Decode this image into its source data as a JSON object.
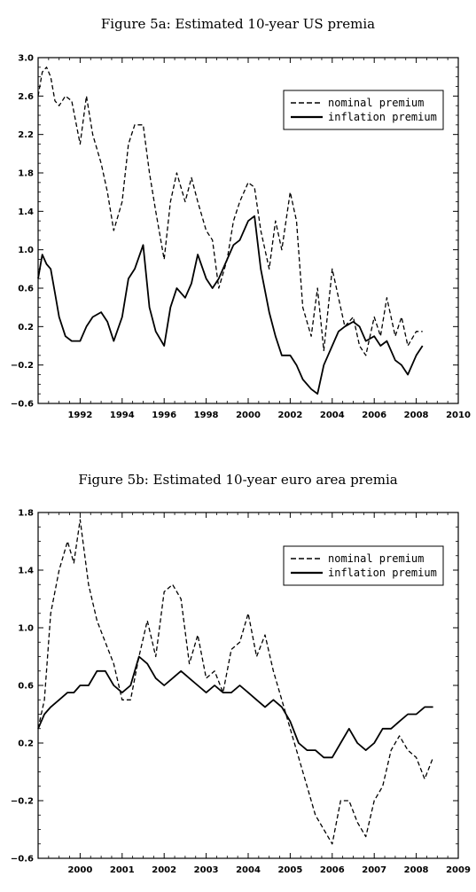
{
  "chart_data": [
    {
      "type": "line",
      "title": "Figure 5a: Estimated 10-year US premia",
      "xlim": [
        1990,
        2010
      ],
      "ylim": [
        -0.6,
        3.0
      ],
      "x_ticks": [
        1992,
        1994,
        1996,
        1998,
        2000,
        2002,
        2004,
        2006,
        2008,
        2010
      ],
      "y_ticks": [
        -0.6,
        -0.2,
        0.2,
        0.6,
        1.0,
        1.4,
        1.8,
        2.2,
        2.6,
        3.0
      ],
      "legend_position": "top-right",
      "grid": false,
      "series": [
        {
          "name": "nominal premium",
          "style": "dashed",
          "x": [
            1990.0,
            1990.2,
            1990.4,
            1990.6,
            1990.8,
            1991.0,
            1991.3,
            1991.6,
            1992.0,
            1992.3,
            1992.6,
            1993.0,
            1993.3,
            1993.6,
            1994.0,
            1994.3,
            1994.6,
            1995.0,
            1995.3,
            1995.6,
            1996.0,
            1996.3,
            1996.6,
            1997.0,
            1997.3,
            1997.6,
            1998.0,
            1998.3,
            1998.6,
            1999.0,
            1999.3,
            1999.6,
            2000.0,
            2000.3,
            2000.6,
            2001.0,
            2001.3,
            2001.6,
            2002.0,
            2002.3,
            2002.6,
            2003.0,
            2003.3,
            2003.6,
            2004.0,
            2004.3,
            2004.6,
            2005.0,
            2005.3,
            2005.6,
            2006.0,
            2006.3,
            2006.6,
            2007.0,
            2007.3,
            2007.6,
            2008.0,
            2008.3
          ],
          "y": [
            2.6,
            2.85,
            2.9,
            2.8,
            2.55,
            2.5,
            2.6,
            2.55,
            2.1,
            2.6,
            2.2,
            1.9,
            1.6,
            1.2,
            1.5,
            2.1,
            2.3,
            2.3,
            1.8,
            1.4,
            0.9,
            1.5,
            1.8,
            1.5,
            1.75,
            1.5,
            1.2,
            1.1,
            0.6,
            0.9,
            1.3,
            1.5,
            1.7,
            1.65,
            1.2,
            0.8,
            1.3,
            1.0,
            1.6,
            1.3,
            0.4,
            0.1,
            0.6,
            -0.05,
            0.8,
            0.5,
            0.2,
            0.3,
            0.0,
            -0.1,
            0.3,
            0.1,
            0.5,
            0.1,
            0.3,
            0.0,
            0.15,
            0.15
          ]
        },
        {
          "name": "inflation premium",
          "style": "solid",
          "x": [
            1990.0,
            1990.2,
            1990.4,
            1990.6,
            1990.8,
            1991.0,
            1991.3,
            1991.6,
            1992.0,
            1992.3,
            1992.6,
            1993.0,
            1993.3,
            1993.6,
            1994.0,
            1994.3,
            1994.6,
            1995.0,
            1995.3,
            1995.6,
            1996.0,
            1996.3,
            1996.6,
            1997.0,
            1997.3,
            1997.6,
            1998.0,
            1998.3,
            1998.6,
            1999.0,
            1999.3,
            1999.6,
            2000.0,
            2000.3,
            2000.6,
            2001.0,
            2001.3,
            2001.6,
            2002.0,
            2002.3,
            2002.6,
            2003.0,
            2003.3,
            2003.6,
            2004.0,
            2004.3,
            2004.6,
            2005.0,
            2005.3,
            2005.6,
            2006.0,
            2006.3,
            2006.6,
            2007.0,
            2007.3,
            2007.6,
            2008.0,
            2008.3
          ],
          "y": [
            0.7,
            0.95,
            0.85,
            0.8,
            0.55,
            0.3,
            0.1,
            0.05,
            0.05,
            0.2,
            0.3,
            0.35,
            0.25,
            0.05,
            0.3,
            0.7,
            0.8,
            1.05,
            0.4,
            0.15,
            0.0,
            0.4,
            0.6,
            0.5,
            0.65,
            0.95,
            0.7,
            0.6,
            0.7,
            0.9,
            1.05,
            1.1,
            1.3,
            1.35,
            0.8,
            0.35,
            0.1,
            -0.1,
            -0.1,
            -0.2,
            -0.35,
            -0.45,
            -0.5,
            -0.2,
            0.0,
            0.15,
            0.2,
            0.25,
            0.2,
            0.05,
            0.1,
            0.0,
            0.05,
            -0.15,
            -0.2,
            -0.3,
            -0.1,
            0.0
          ]
        }
      ]
    },
    {
      "type": "line",
      "title": "Figure 5b: Estimated 10-year euro area premia",
      "xlim": [
        1999,
        2009
      ],
      "ylim": [
        -0.6,
        1.8
      ],
      "x_ticks": [
        2000,
        2001,
        2002,
        2003,
        2004,
        2005,
        2006,
        2007,
        2008,
        2009
      ],
      "y_ticks": [
        -0.6,
        -0.2,
        0.2,
        0.6,
        1.0,
        1.4,
        1.8
      ],
      "legend_position": "top-right",
      "grid": false,
      "series": [
        {
          "name": "nominal premium",
          "style": "dashed",
          "x": [
            1999.0,
            1999.15,
            1999.3,
            1999.5,
            1999.7,
            1999.85,
            2000.0,
            2000.2,
            2000.4,
            2000.6,
            2000.8,
            2001.0,
            2001.2,
            2001.4,
            2001.6,
            2001.8,
            2002.0,
            2002.2,
            2002.4,
            2002.6,
            2002.8,
            2003.0,
            2003.2,
            2003.4,
            2003.6,
            2003.8,
            2004.0,
            2004.2,
            2004.4,
            2004.6,
            2004.8,
            2005.0,
            2005.2,
            2005.4,
            2005.6,
            2005.8,
            2006.0,
            2006.2,
            2006.4,
            2006.6,
            2006.8,
            2007.0,
            2007.2,
            2007.4,
            2007.6,
            2007.8,
            2008.0,
            2008.2,
            2008.4
          ],
          "y": [
            0.3,
            0.5,
            1.1,
            1.4,
            1.6,
            1.45,
            1.75,
            1.3,
            1.05,
            0.9,
            0.75,
            0.5,
            0.5,
            0.8,
            1.05,
            0.8,
            1.25,
            1.3,
            1.2,
            0.75,
            0.95,
            0.65,
            0.7,
            0.55,
            0.85,
            0.9,
            1.1,
            0.8,
            0.95,
            0.7,
            0.5,
            0.3,
            0.1,
            -0.1,
            -0.3,
            -0.4,
            -0.5,
            -0.2,
            -0.2,
            -0.35,
            -0.45,
            -0.2,
            -0.1,
            0.15,
            0.25,
            0.15,
            0.1,
            -0.05,
            0.1
          ]
        },
        {
          "name": "inflation premium",
          "style": "solid",
          "x": [
            1999.0,
            1999.15,
            1999.3,
            1999.5,
            1999.7,
            1999.85,
            2000.0,
            2000.2,
            2000.4,
            2000.6,
            2000.8,
            2001.0,
            2001.2,
            2001.4,
            2001.6,
            2001.8,
            2002.0,
            2002.2,
            2002.4,
            2002.6,
            2002.8,
            2003.0,
            2003.2,
            2003.4,
            2003.6,
            2003.8,
            2004.0,
            2004.2,
            2004.4,
            2004.6,
            2004.8,
            2005.0,
            2005.2,
            2005.4,
            2005.6,
            2005.8,
            2006.0,
            2006.2,
            2006.4,
            2006.6,
            2006.8,
            2007.0,
            2007.2,
            2007.4,
            2007.6,
            2007.8,
            2008.0,
            2008.2,
            2008.4
          ],
          "y": [
            0.3,
            0.4,
            0.45,
            0.5,
            0.55,
            0.55,
            0.6,
            0.6,
            0.7,
            0.7,
            0.6,
            0.55,
            0.6,
            0.8,
            0.75,
            0.65,
            0.6,
            0.65,
            0.7,
            0.65,
            0.6,
            0.55,
            0.6,
            0.55,
            0.55,
            0.6,
            0.55,
            0.5,
            0.45,
            0.5,
            0.45,
            0.35,
            0.2,
            0.15,
            0.15,
            0.1,
            0.1,
            0.2,
            0.3,
            0.2,
            0.15,
            0.2,
            0.3,
            0.3,
            0.35,
            0.4,
            0.4,
            0.45,
            0.45
          ]
        }
      ]
    }
  ]
}
